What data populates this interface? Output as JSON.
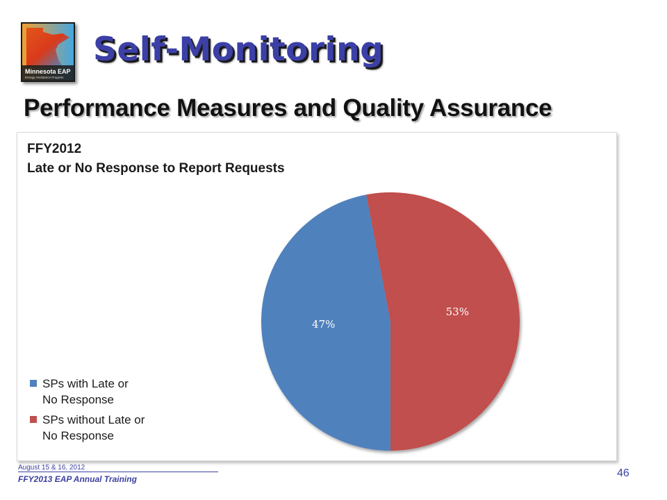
{
  "slide": {
    "title": "Self-Monitoring",
    "subtitle": "Performance Measures and Quality Assurance",
    "logo_text": "Minnesota EAP",
    "logo_tagline": "Energy Assistance Program",
    "footer_date": "August 15 & 16, 2012",
    "footer_training": "FFY2013 EAP Annual Training",
    "page_number": "46"
  },
  "chart_data": {
    "type": "pie",
    "title_line1": "FFY2012",
    "title_line2": "Late or No Response to Report Requests",
    "slices": [
      {
        "name": "SPs with Late or No Response",
        "value": 47,
        "label": "47%",
        "color": "#4f81bd"
      },
      {
        "name": "SPs without Late or No Response",
        "value": 53,
        "label": "53%",
        "color": "#c0504d"
      }
    ],
    "legend_position": "left-bottom"
  },
  "legend": {
    "item0_line1": "SPs with Late or",
    "item0_line2": "No Response",
    "item1_line1": "SPs without Late or",
    "item1_line2": "No Response"
  }
}
